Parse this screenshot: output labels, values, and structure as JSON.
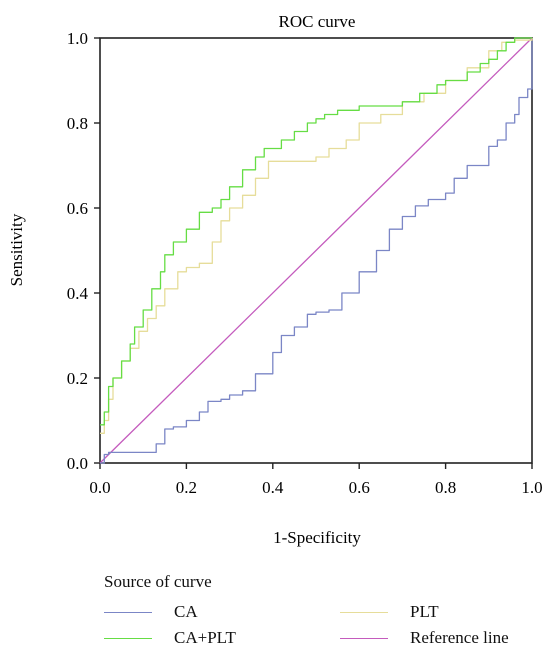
{
  "chart_data": {
    "type": "line",
    "title": "ROC curve",
    "xlabel": "1-Specificity",
    "ylabel": "Sensitivity",
    "xlim": [
      0,
      1
    ],
    "ylim": [
      0,
      1
    ],
    "xticks": [
      "0.0",
      "0.2",
      "0.4",
      "0.6",
      "0.8",
      "1.0"
    ],
    "yticks": [
      "0.0",
      "0.2",
      "0.4",
      "0.6",
      "0.8",
      "1.0"
    ],
    "grid": false,
    "legend_title": "Source of curve",
    "legend_position": "bottom",
    "series": [
      {
        "name": "CA",
        "color": "#7b86c6",
        "x": [
          0,
          0.01,
          0.02,
          0.05,
          0.08,
          0.12,
          0.13,
          0.15,
          0.17,
          0.2,
          0.23,
          0.25,
          0.28,
          0.3,
          0.33,
          0.36,
          0.4,
          0.42,
          0.45,
          0.48,
          0.5,
          0.53,
          0.56,
          0.6,
          0.64,
          0.67,
          0.7,
          0.73,
          0.76,
          0.8,
          0.82,
          0.85,
          0.87,
          0.88,
          0.9,
          0.92,
          0.94,
          0.96,
          0.97,
          0.99,
          1.0
        ],
        "y": [
          0,
          0.02,
          0.025,
          0.025,
          0.025,
          0.025,
          0.045,
          0.08,
          0.085,
          0.1,
          0.12,
          0.145,
          0.15,
          0.16,
          0.17,
          0.21,
          0.26,
          0.3,
          0.32,
          0.35,
          0.355,
          0.36,
          0.4,
          0.45,
          0.5,
          0.55,
          0.58,
          0.605,
          0.62,
          0.635,
          0.67,
          0.7,
          0.7,
          0.7,
          0.745,
          0.76,
          0.8,
          0.82,
          0.86,
          0.88,
          1.0
        ]
      },
      {
        "name": "PLT",
        "color": "#e6dd9a",
        "x": [
          0,
          0.01,
          0.02,
          0.03,
          0.05,
          0.07,
          0.09,
          0.11,
          0.13,
          0.15,
          0.18,
          0.2,
          0.23,
          0.26,
          0.28,
          0.3,
          0.33,
          0.36,
          0.39,
          0.43,
          0.47,
          0.5,
          0.53,
          0.57,
          0.6,
          0.65,
          0.7,
          0.75,
          0.8,
          0.85,
          0.9,
          0.93,
          0.96,
          1.0
        ],
        "y": [
          0.07,
          0.1,
          0.15,
          0.2,
          0.24,
          0.27,
          0.31,
          0.34,
          0.37,
          0.41,
          0.45,
          0.46,
          0.47,
          0.52,
          0.57,
          0.6,
          0.63,
          0.67,
          0.71,
          0.71,
          0.71,
          0.72,
          0.74,
          0.76,
          0.8,
          0.82,
          0.85,
          0.87,
          0.9,
          0.93,
          0.97,
          0.99,
          0.995,
          1.0
        ]
      },
      {
        "name": "CA+PLT",
        "color": "#66dd44",
        "x": [
          0,
          0.01,
          0.02,
          0.03,
          0.05,
          0.07,
          0.08,
          0.1,
          0.12,
          0.14,
          0.15,
          0.17,
          0.2,
          0.23,
          0.26,
          0.28,
          0.3,
          0.33,
          0.36,
          0.38,
          0.42,
          0.45,
          0.48,
          0.5,
          0.52,
          0.55,
          0.6,
          0.65,
          0.7,
          0.74,
          0.78,
          0.8,
          0.85,
          0.88,
          0.9,
          0.92,
          0.94,
          0.96,
          1.0
        ],
        "y": [
          0.09,
          0.12,
          0.18,
          0.2,
          0.24,
          0.28,
          0.32,
          0.36,
          0.41,
          0.45,
          0.49,
          0.52,
          0.55,
          0.59,
          0.6,
          0.62,
          0.65,
          0.69,
          0.72,
          0.74,
          0.76,
          0.78,
          0.8,
          0.81,
          0.82,
          0.83,
          0.84,
          0.84,
          0.85,
          0.87,
          0.89,
          0.9,
          0.92,
          0.94,
          0.95,
          0.97,
          0.99,
          1.0,
          1.0
        ]
      },
      {
        "name": "Reference line",
        "color": "#c45bbd",
        "x": [
          0,
          1
        ],
        "y": [
          0,
          1
        ]
      }
    ]
  }
}
